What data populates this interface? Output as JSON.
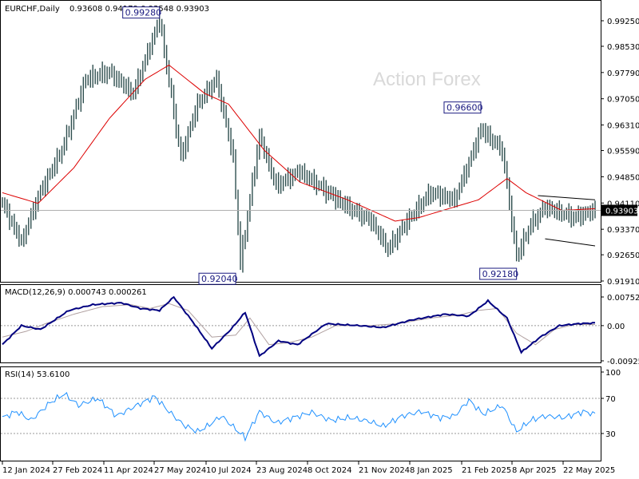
{
  "header": {
    "symbol": "EURCHF,Daily",
    "ohlc": "0.93608 0.94179 0.93548 0.93903"
  },
  "watermark": "Action Forex",
  "colors": {
    "price": "#2f4f4f",
    "ma": "#dd0000",
    "macd": "#000080",
    "signal": "#b0a0a0",
    "rsi": "#1e90ff",
    "current_label_bg": "#000000",
    "current_label_text": "#ffffff",
    "frame": "#000000"
  },
  "chart_data": [
    {
      "type": "line",
      "panel": "price",
      "title": "EURCHF,Daily",
      "yticks": [
        "0.99250",
        "0.98530",
        "0.97790",
        "0.97050",
        "0.96310",
        "0.95590",
        "0.94850",
        "0.94110",
        "0.93370",
        "0.92650",
        "0.91910"
      ],
      "ylim": [
        0.9191,
        0.9943
      ],
      "current": "0.93903",
      "current_value": 0.93903,
      "xticks": [
        "12 Jan 2024",
        "27 Feb 2024",
        "11 Apr 2024",
        "27 May 2024",
        "10 Jul 2024",
        "23 Aug 2024",
        "8 Oct 2024",
        "21 Nov 2024",
        "8 Jan 2025",
        "21 Feb 2025",
        "8 Apr 2025",
        "22 May 2025"
      ],
      "annotations": [
        {
          "text": "0.99280",
          "value": 0.9928,
          "index": 66
        },
        {
          "text": "0.92040",
          "value": 0.9204,
          "index": 98
        },
        {
          "text": "0.96600",
          "value": 0.966,
          "index": 201
        },
        {
          "text": "0.92180",
          "value": 0.9218,
          "index": 216
        }
      ],
      "series": [
        {
          "name": "Close",
          "anchors": [
            [
              0,
              0.941
            ],
            [
              8,
              0.93
            ],
            [
              15,
              0.943
            ],
            [
              25,
              0.956
            ],
            [
              35,
              0.976
            ],
            [
              45,
              0.978
            ],
            [
              55,
              0.972
            ],
            [
              66,
              0.9928
            ],
            [
              75,
              0.954
            ],
            [
              82,
              0.969
            ],
            [
              90,
              0.976
            ],
            [
              97,
              0.954
            ],
            [
              100,
              0.924
            ],
            [
              108,
              0.96
            ],
            [
              115,
              0.946
            ],
            [
              125,
              0.95
            ],
            [
              135,
              0.945
            ],
            [
              145,
              0.94
            ],
            [
              155,
              0.936
            ],
            [
              162,
              0.928
            ],
            [
              170,
              0.936
            ],
            [
              180,
              0.944
            ],
            [
              190,
              0.942
            ],
            [
              198,
              0.956
            ],
            [
              201,
              0.962
            ],
            [
              210,
              0.956
            ],
            [
              216,
              0.926
            ],
            [
              222,
              0.935
            ],
            [
              228,
              0.94
            ],
            [
              240,
              0.937
            ],
            [
              249,
              0.939
            ]
          ]
        },
        {
          "name": "MA",
          "anchors": [
            [
              0,
              0.944
            ],
            [
              15,
              0.941
            ],
            [
              30,
              0.951
            ],
            [
              45,
              0.965
            ],
            [
              60,
              0.976
            ],
            [
              70,
              0.98
            ],
            [
              85,
              0.972
            ],
            [
              95,
              0.969
            ],
            [
              110,
              0.956
            ],
            [
              125,
              0.947
            ],
            [
              145,
              0.942
            ],
            [
              155,
              0.939
            ],
            [
              165,
              0.936
            ],
            [
              175,
              0.937
            ],
            [
              190,
              0.94
            ],
            [
              200,
              0.942
            ],
            [
              212,
              0.948
            ],
            [
              220,
              0.944
            ],
            [
              235,
              0.939
            ],
            [
              249,
              0.9395
            ]
          ]
        }
      ],
      "channel": {
        "upper": [
          [
            225,
            0.9432
          ],
          [
            249,
            0.942
          ]
        ],
        "lower": [
          [
            228,
            0.931
          ],
          [
            249,
            0.929
          ]
        ]
      }
    },
    {
      "type": "line",
      "panel": "macd",
      "title": "MACD(12,26,9) 0.000743 0.000261",
      "yticks": [
        "0.007526",
        "0.00",
        "-0.009252"
      ],
      "ylim": [
        -0.009252,
        0.007526
      ],
      "series": [
        {
          "name": "MACD",
          "anchors": [
            [
              0,
              -0.005
            ],
            [
              8,
              0.0
            ],
            [
              16,
              -0.001
            ],
            [
              28,
              0.004
            ],
            [
              38,
              0.0055
            ],
            [
              50,
              0.006
            ],
            [
              58,
              0.0045
            ],
            [
              66,
              0.004
            ],
            [
              72,
              0.0075
            ],
            [
              80,
              0.001
            ],
            [
              88,
              -0.006
            ],
            [
              96,
              -0.001
            ],
            [
              102,
              0.0035
            ],
            [
              108,
              -0.008
            ],
            [
              116,
              -0.004
            ],
            [
              124,
              -0.005
            ],
            [
              136,
              0.0005
            ],
            [
              150,
              0.0
            ],
            [
              160,
              -0.0005
            ],
            [
              172,
              0.0015
            ],
            [
              186,
              0.003
            ],
            [
              196,
              0.0025
            ],
            [
              204,
              0.0065
            ],
            [
              212,
              0.002
            ],
            [
              218,
              -0.007
            ],
            [
              226,
              -0.003
            ],
            [
              234,
              0.0
            ],
            [
              242,
              0.0005
            ],
            [
              249,
              0.0007
            ]
          ]
        },
        {
          "name": "Signal",
          "anchors": [
            [
              0,
              -0.003
            ],
            [
              10,
              -0.0015
            ],
            [
              18,
              0.0005
            ],
            [
              30,
              0.003
            ],
            [
              42,
              0.005
            ],
            [
              54,
              0.0055
            ],
            [
              62,
              0.0045
            ],
            [
              70,
              0.0058
            ],
            [
              78,
              0.004
            ],
            [
              88,
              -0.003
            ],
            [
              98,
              -0.0025
            ],
            [
              104,
              0.002
            ],
            [
              112,
              -0.005
            ],
            [
              120,
              -0.0045
            ],
            [
              130,
              -0.003
            ],
            [
              140,
              0.0
            ],
            [
              154,
              0.0
            ],
            [
              166,
              0.0005
            ],
            [
              180,
              0.002
            ],
            [
              192,
              0.0028
            ],
            [
              200,
              0.004
            ],
            [
              208,
              0.0045
            ],
            [
              216,
              -0.002
            ],
            [
              224,
              -0.005
            ],
            [
              232,
              -0.001
            ],
            [
              240,
              0.0003
            ],
            [
              249,
              0.0003
            ]
          ]
        }
      ]
    },
    {
      "type": "line",
      "panel": "rsi",
      "title": "RSI(14) 53.6100",
      "yticks": [
        "100",
        "70",
        "30",
        "0"
      ],
      "ylim": [
        0,
        100
      ],
      "levels": [
        70,
        30
      ],
      "series": [
        {
          "name": "RSI",
          "anchors": [
            [
              0,
              48
            ],
            [
              6,
              55
            ],
            [
              12,
              45
            ],
            [
              20,
              65
            ],
            [
              26,
              75
            ],
            [
              32,
              62
            ],
            [
              40,
              70
            ],
            [
              48,
              50
            ],
            [
              55,
              60
            ],
            [
              64,
              72
            ],
            [
              70,
              55
            ],
            [
              76,
              40
            ],
            [
              82,
              32
            ],
            [
              86,
              38
            ],
            [
              92,
              50
            ],
            [
              98,
              35
            ],
            [
              102,
              25
            ],
            [
              108,
              55
            ],
            [
              115,
              42
            ],
            [
              122,
              48
            ],
            [
              130,
              54
            ],
            [
              138,
              45
            ],
            [
              146,
              48
            ],
            [
              154,
              44
            ],
            [
              160,
              38
            ],
            [
              168,
              50
            ],
            [
              176,
              55
            ],
            [
              184,
              48
            ],
            [
              190,
              50
            ],
            [
              196,
              68
            ],
            [
              202,
              52
            ],
            [
              210,
              62
            ],
            [
              216,
              32
            ],
            [
              222,
              45
            ],
            [
              228,
              50
            ],
            [
              236,
              48
            ],
            [
              244,
              55
            ],
            [
              249,
              52
            ]
          ]
        }
      ]
    }
  ]
}
